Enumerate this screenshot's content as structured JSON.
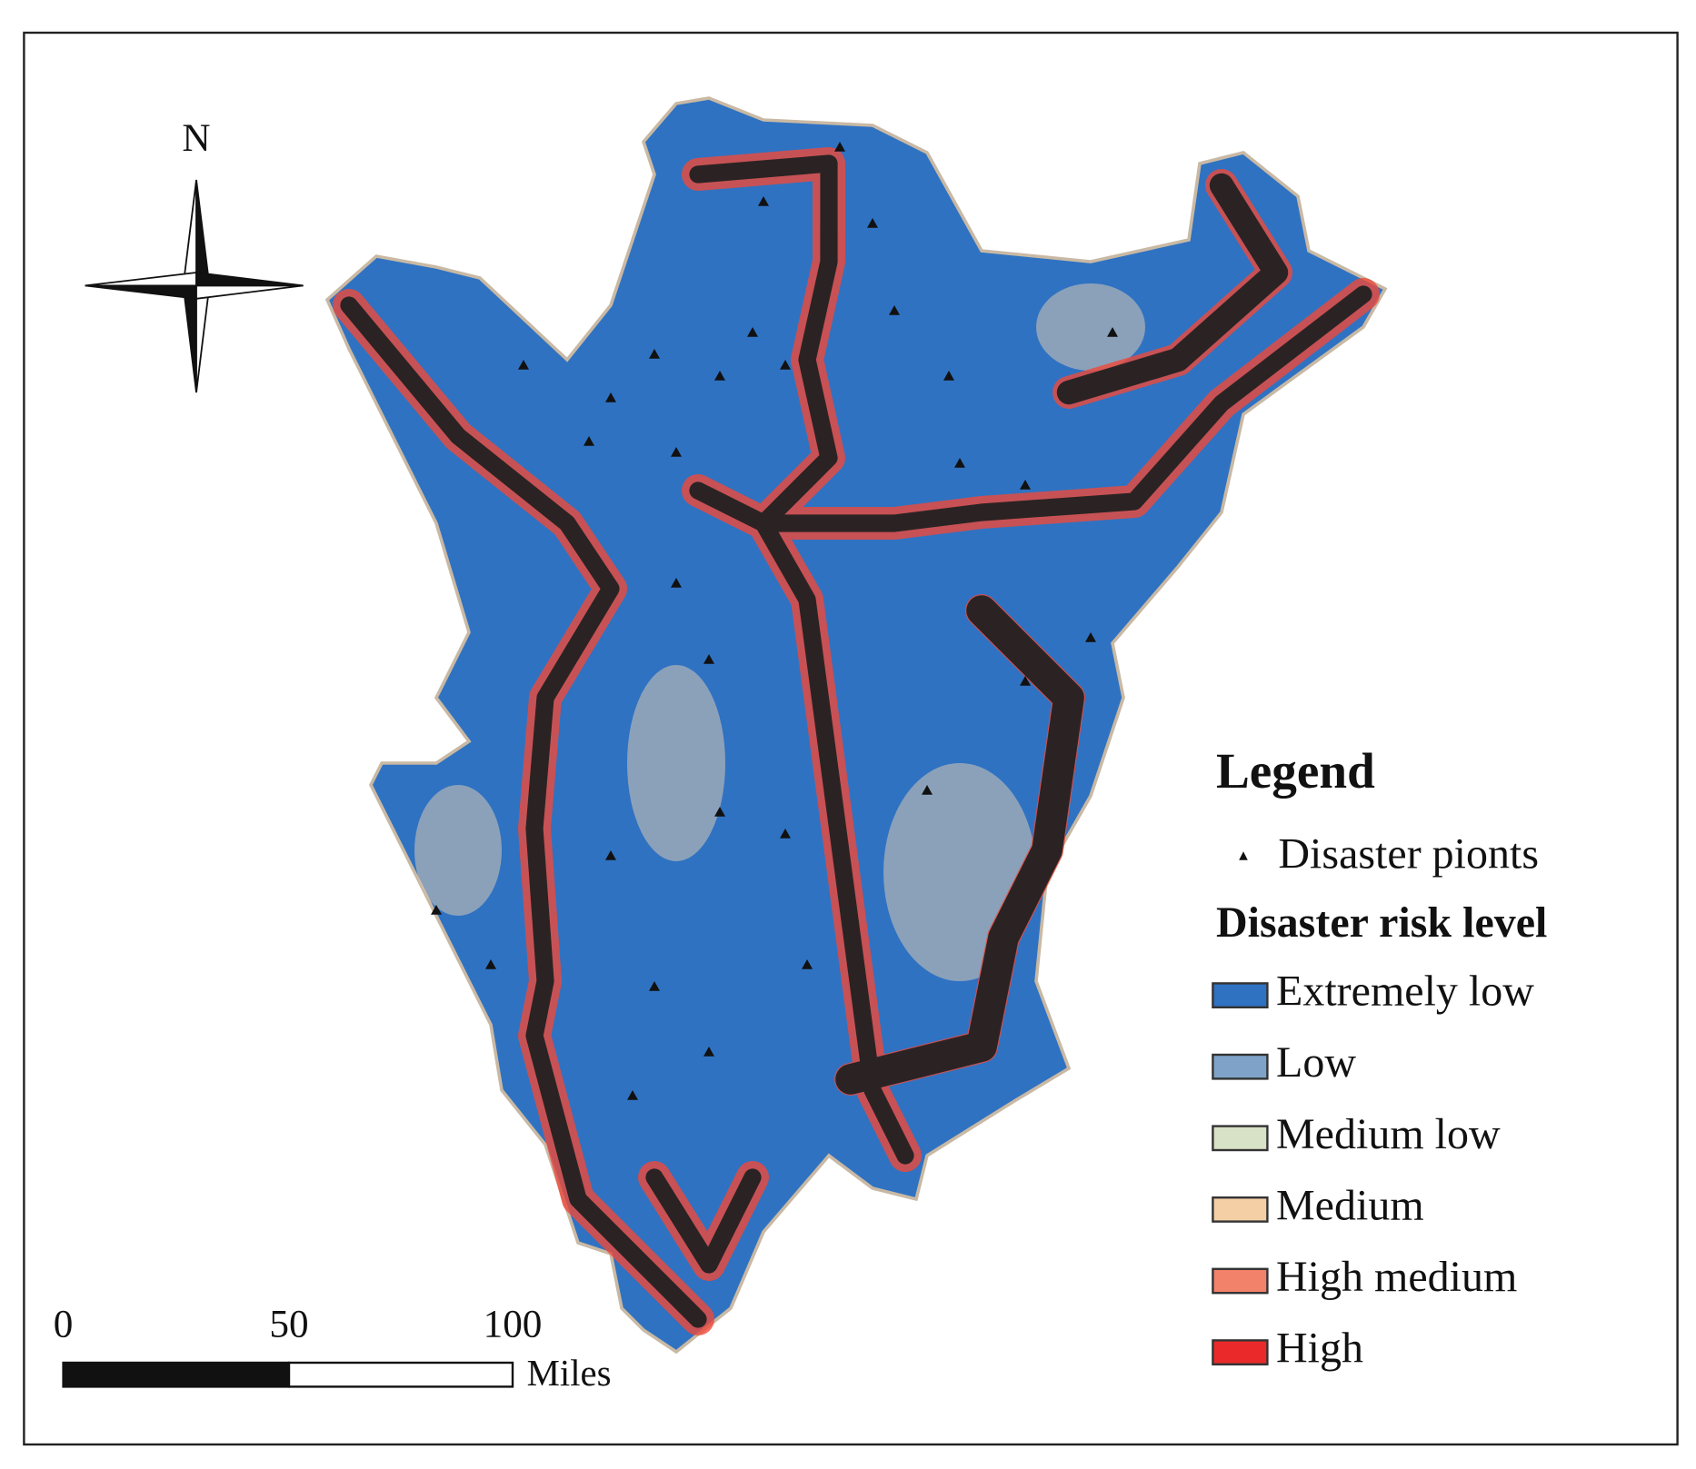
{
  "north_label": "N",
  "legend": {
    "title": "Legend",
    "points_label": "Disaster pionts",
    "risk_title": "Disaster risk level",
    "items": [
      {
        "label": "Extremely low",
        "color": "#2f72c2"
      },
      {
        "label": "Low",
        "color": "#7fa3c8"
      },
      {
        "label": "Medium low",
        "color": "#d8e2c6"
      },
      {
        "label": "Medium",
        "color": "#f4cfa6"
      },
      {
        "label": "High medium",
        "color": "#f3826a"
      },
      {
        "label": "High",
        "color": "#ea2a2a"
      }
    ]
  },
  "scale_bar": {
    "labels": [
      "0",
      "50",
      "100"
    ],
    "unit": "Miles"
  }
}
